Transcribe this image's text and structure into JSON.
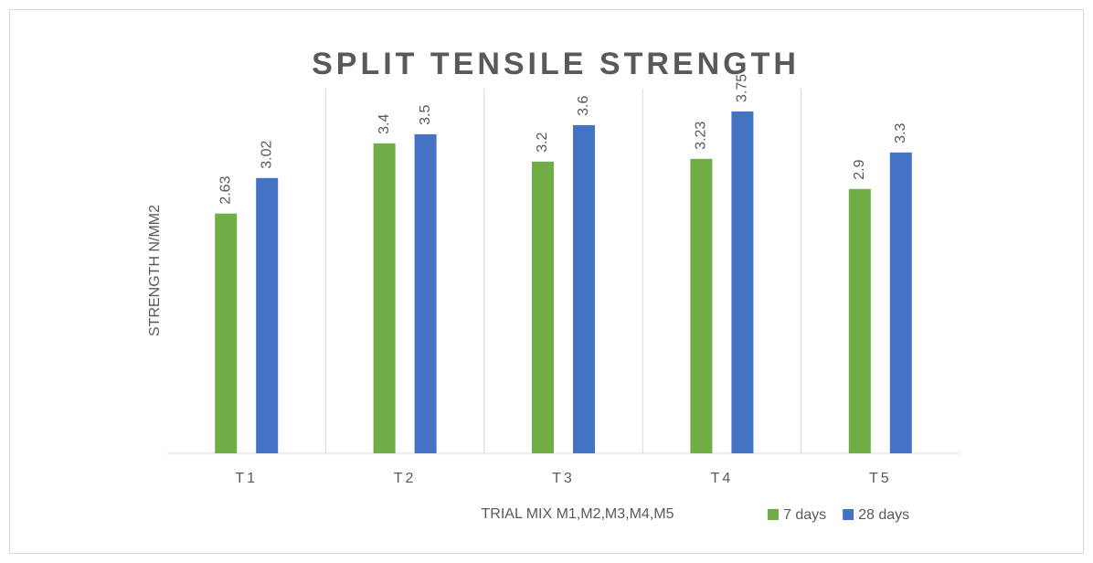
{
  "chart_data": {
    "type": "bar",
    "title": "SPLIT TENSILE STRENGTH",
    "x_label": "TRIAL MIX M1,M2,M3,M4,M5",
    "y_label": "STRENGTH N/MM2",
    "categories": [
      "T1",
      "T2",
      "T3",
      "T4",
      "T5"
    ],
    "series": [
      {
        "name": "7 days",
        "color": "#70ad47",
        "values": [
          2.63,
          3.4,
          3.2,
          3.23,
          2.9
        ]
      },
      {
        "name": "28 days",
        "color": "#4472c4",
        "values": [
          3.02,
          3.5,
          3.6,
          3.75,
          3.3
        ]
      }
    ],
    "ylim": [
      0,
      4
    ],
    "legend": "bottom-right"
  }
}
